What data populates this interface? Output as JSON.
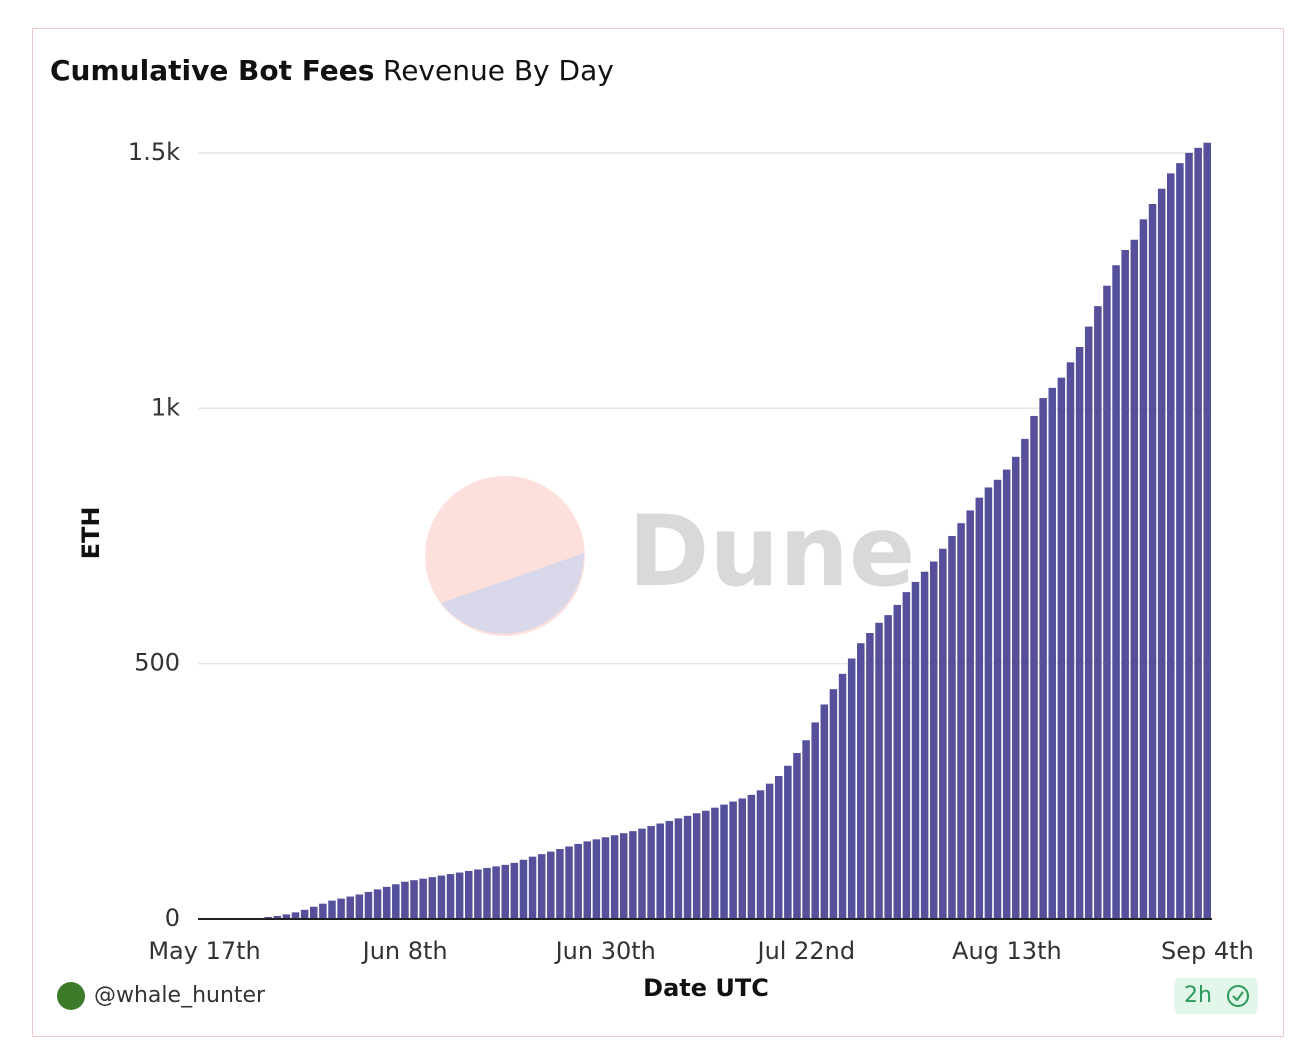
{
  "chart_data": {
    "type": "bar",
    "title": "Cumulative Bot Fees",
    "subtitle": "Revenue By Day",
    "x_label": "Date UTC",
    "y_label": "ETH",
    "watermark": "Dune",
    "author": "@whale_hunter",
    "refresh": "2h",
    "color": "#55509b",
    "categories": [
      "May 17th",
      null,
      null,
      null,
      null,
      null,
      null,
      null,
      null,
      null,
      null,
      null,
      null,
      null,
      null,
      null,
      null,
      null,
      null,
      null,
      null,
      null,
      "Jun 8th",
      null,
      null,
      null,
      null,
      null,
      null,
      null,
      null,
      null,
      null,
      null,
      null,
      null,
      null,
      null,
      null,
      null,
      null,
      null,
      null,
      null,
      "Jun 30th",
      null,
      null,
      null,
      null,
      null,
      null,
      null,
      null,
      null,
      null,
      null,
      null,
      null,
      null,
      null,
      null,
      null,
      null,
      null,
      null,
      null,
      "Jul 22nd",
      null,
      null,
      null,
      null,
      null,
      null,
      null,
      null,
      null,
      null,
      null,
      null,
      null,
      null,
      null,
      null,
      null,
      null,
      null,
      null,
      null,
      "Aug 13th",
      null,
      null,
      null,
      null,
      null,
      null,
      null,
      null,
      null,
      null,
      null,
      null,
      null,
      null,
      null,
      null,
      null,
      null,
      null,
      null,
      null,
      "Sep 4th"
    ],
    "values": [
      0,
      0,
      0,
      0,
      1,
      1,
      2,
      4,
      6,
      9,
      13,
      18,
      24,
      30,
      36,
      40,
      44,
      48,
      53,
      58,
      63,
      68,
      73,
      76,
      79,
      82,
      85,
      88,
      91,
      94,
      97,
      100,
      103,
      106,
      110,
      116,
      122,
      127,
      132,
      137,
      142,
      147,
      152,
      156,
      160,
      164,
      168,
      172,
      177,
      182,
      187,
      192,
      197,
      202,
      207,
      212,
      218,
      224,
      230,
      236,
      243,
      252,
      265,
      280,
      300,
      325,
      350,
      385,
      420,
      450,
      480,
      510,
      540,
      560,
      580,
      595,
      615,
      640,
      660,
      680,
      700,
      725,
      750,
      775,
      800,
      825,
      845,
      860,
      880,
      905,
      940,
      985,
      1020,
      1040,
      1060,
      1090,
      1120,
      1160,
      1200,
      1240,
      1280,
      1310,
      1330,
      1370,
      1400,
      1430,
      1460,
      1480,
      1500,
      1510,
      1520
    ],
    "ylim": [
      0,
      1530
    ],
    "yticks": [
      0,
      500,
      {
        "value": 1000,
        "label": "1k"
      },
      {
        "value": 1500,
        "label": "1.5k"
      }
    ],
    "grid": true
  }
}
